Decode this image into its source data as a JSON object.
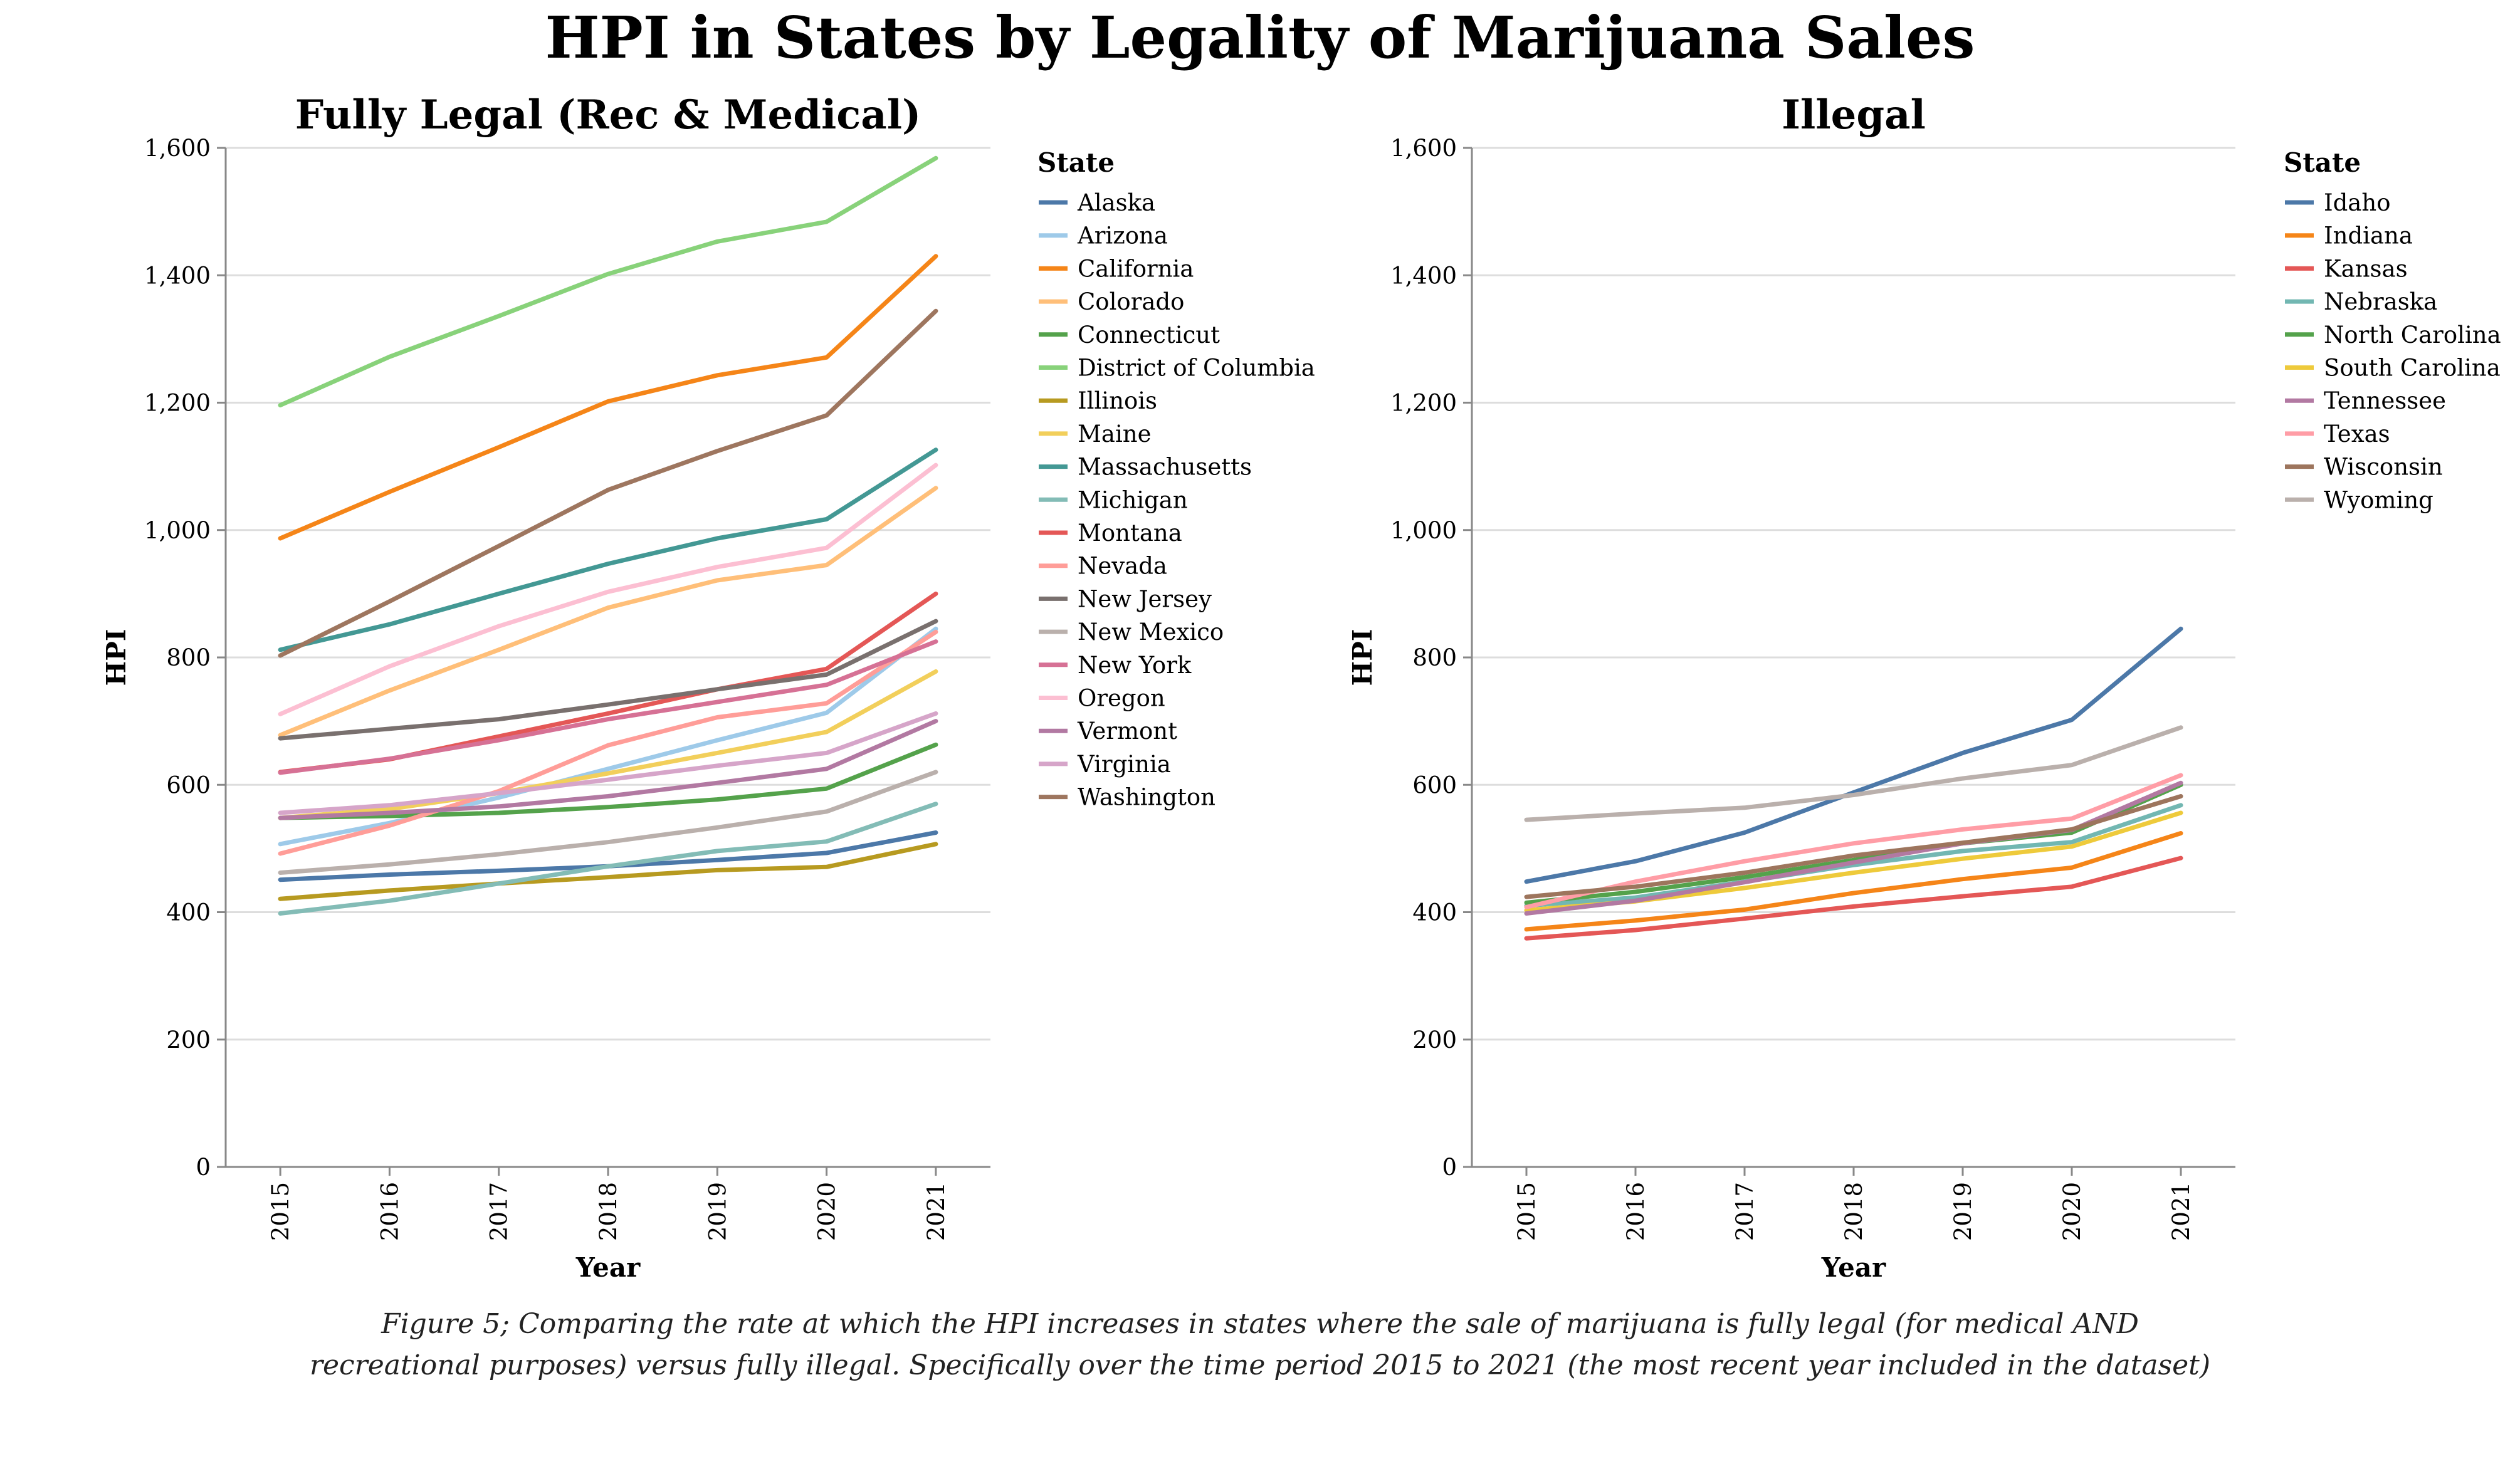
{
  "title": "HPI in States by Legality of Marijuana Sales",
  "caption": {
    "line1": "Figure 5; Comparing the rate at which the HPI increases in states where the sale of marijuana is fully legal (for medical AND",
    "line2": "recreational purposes) versus fully illegal. Specifically over the time period 2015 to 2021 (the most recent year included in the dataset)"
  },
  "chart_data": [
    {
      "type": "line",
      "title": "Fully Legal (Rec & Medical)",
      "xlabel": "Year",
      "ylabel": "HPI",
      "ylim": [
        0,
        1600
      ],
      "yticks": [
        0,
        200,
        400,
        600,
        800,
        1000,
        1200,
        1400,
        1600
      ],
      "ytick_labels": [
        "0",
        "200",
        "400",
        "600",
        "800",
        "1,000",
        "1,200",
        "1,400",
        "1,600"
      ],
      "x": [
        "2015",
        "2016",
        "2017",
        "2018",
        "2019",
        "2020",
        "2021"
      ],
      "grid": "horizontal",
      "legend": {
        "title": "State",
        "placement": "right"
      },
      "series": [
        {
          "name": "Alaska",
          "color": "#4c78a8",
          "values": [
            451,
            459,
            465,
            472,
            482,
            493,
            525
          ]
        },
        {
          "name": "Arizona",
          "color": "#9ecae9",
          "values": [
            507,
            540,
            580,
            625,
            670,
            713,
            845
          ]
        },
        {
          "name": "California",
          "color": "#f58518",
          "values": [
            987,
            1060,
            1130,
            1202,
            1243,
            1271,
            1430
          ]
        },
        {
          "name": "Colorado",
          "color": "#ffbf79",
          "values": [
            678,
            748,
            812,
            878,
            921,
            945,
            1066
          ]
        },
        {
          "name": "Connecticut",
          "color": "#54a24b",
          "values": [
            548,
            551,
            556,
            565,
            577,
            594,
            663
          ]
        },
        {
          "name": "District of Columbia",
          "color": "#88d27a",
          "values": [
            1196,
            1272,
            1336,
            1402,
            1453,
            1484,
            1584
          ]
        },
        {
          "name": "Illinois",
          "color": "#b79a20",
          "values": [
            421,
            434,
            445,
            455,
            466,
            471,
            507
          ]
        },
        {
          "name": "Maine",
          "color": "#f2cf5b",
          "values": [
            548,
            562,
            587,
            618,
            650,
            683,
            778
          ]
        },
        {
          "name": "Massachusetts",
          "color": "#439894",
          "values": [
            812,
            852,
            900,
            947,
            987,
            1017,
            1126
          ]
        },
        {
          "name": "Michigan",
          "color": "#83bcb6",
          "values": [
            398,
            418,
            445,
            472,
            496,
            511,
            570
          ]
        },
        {
          "name": "Montana",
          "color": "#e45756",
          "values": [
            620,
            640,
            676,
            712,
            750,
            782,
            900
          ]
        },
        {
          "name": "Nevada",
          "color": "#ff9d98",
          "values": [
            492,
            536,
            590,
            662,
            706,
            728,
            840
          ]
        },
        {
          "name": "New Jersey",
          "color": "#79706e",
          "values": [
            673,
            688,
            703,
            726,
            750,
            773,
            857
          ]
        },
        {
          "name": "New Mexico",
          "color": "#bab0ac",
          "values": [
            462,
            475,
            491,
            510,
            533,
            558,
            620
          ]
        },
        {
          "name": "New York",
          "color": "#d67195",
          "values": [
            619,
            641,
            670,
            703,
            730,
            757,
            825
          ]
        },
        {
          "name": "Oregon",
          "color": "#fcbfd2",
          "values": [
            711,
            786,
            849,
            903,
            942,
            972,
            1102
          ]
        },
        {
          "name": "Vermont",
          "color": "#b279a2",
          "values": [
            548,
            556,
            566,
            582,
            603,
            625,
            700
          ]
        },
        {
          "name": "Virginia",
          "color": "#d6a5c9",
          "values": [
            556,
            568,
            587,
            608,
            630,
            650,
            712
          ]
        },
        {
          "name": "Washington",
          "color": "#9e765f",
          "values": [
            803,
            888,
            975,
            1063,
            1124,
            1180,
            1344
          ]
        }
      ]
    },
    {
      "type": "line",
      "title": "Illegal",
      "xlabel": "Year",
      "ylabel": "HPI",
      "ylim": [
        0,
        1600
      ],
      "yticks": [
        0,
        200,
        400,
        600,
        800,
        1000,
        1200,
        1400,
        1600
      ],
      "ytick_labels": [
        "0",
        "200",
        "400",
        "600",
        "800",
        "1,000",
        "1,200",
        "1,400",
        "1,600"
      ],
      "x": [
        "2015",
        "2016",
        "2017",
        "2018",
        "2019",
        "2020",
        "2021"
      ],
      "grid": "horizontal",
      "legend": {
        "title": "State",
        "placement": "right"
      },
      "series": [
        {
          "name": "Idaho",
          "color": "#4c78a8",
          "values": [
            448,
            480,
            525,
            588,
            650,
            702,
            845
          ]
        },
        {
          "name": "Indiana",
          "color": "#f58518",
          "values": [
            373,
            387,
            404,
            430,
            452,
            470,
            524
          ]
        },
        {
          "name": "Kansas",
          "color": "#e45756",
          "values": [
            359,
            372,
            390,
            409,
            425,
            440,
            485
          ]
        },
        {
          "name": "Nebraska",
          "color": "#72b7b2",
          "values": [
            410,
            423,
            448,
            474,
            496,
            510,
            568
          ]
        },
        {
          "name": "North Carolina",
          "color": "#54a24b",
          "values": [
            415,
            432,
            455,
            482,
            508,
            525,
            600
          ]
        },
        {
          "name": "South Carolina",
          "color": "#eeca3b",
          "values": [
            403,
            417,
            438,
            462,
            484,
            503,
            556
          ]
        },
        {
          "name": "Tennessee",
          "color": "#b279a2",
          "values": [
            398,
            418,
            447,
            478,
            508,
            529,
            603
          ]
        },
        {
          "name": "Texas",
          "color": "#ff9da6",
          "values": [
            408,
            448,
            480,
            508,
            530,
            547,
            615
          ]
        },
        {
          "name": "Wisconsin",
          "color": "#9d755d",
          "values": [
            424,
            440,
            462,
            489,
            509,
            530,
            582
          ]
        },
        {
          "name": "Wyoming",
          "color": "#bab0ac",
          "values": [
            545,
            555,
            564,
            584,
            610,
            631,
            690
          ]
        }
      ]
    }
  ]
}
